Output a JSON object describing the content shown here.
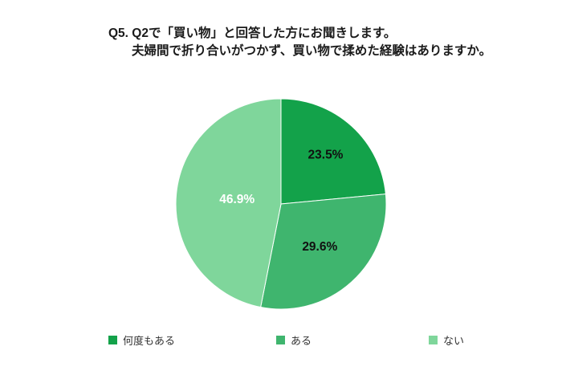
{
  "page": {
    "background": "#ffffff"
  },
  "title": {
    "line1": "Q5. Q2で「買い物」と回答した方にお聞きします。",
    "line2": "夫婦間で折り合いがつかず、買い物で揉めた経験はありますか。"
  },
  "chart_data": {
    "type": "pie",
    "title": "Q5. Q2で「買い物」と回答した方にお聞きします。夫婦間で折り合いがつかず、買い物で揉めた経験はありますか。",
    "start_angle_deg": 0,
    "direction": "clockwise",
    "legend_position": "bottom",
    "slices": [
      {
        "label": "何度もある",
        "value": 23.5,
        "display": "23.5%",
        "color": "#13a24a",
        "label_color": "#111111",
        "label_r": 0.63
      },
      {
        "label": "ある",
        "value": 29.6,
        "display": "29.6%",
        "color": "#3fb56e",
        "label_color": "#111111",
        "label_r": 0.55
      },
      {
        "label": "ない",
        "value": 46.9,
        "display": "46.9%",
        "color": "#7fd69b",
        "label_color": "#ffffff",
        "label_r": 0.42
      }
    ]
  }
}
